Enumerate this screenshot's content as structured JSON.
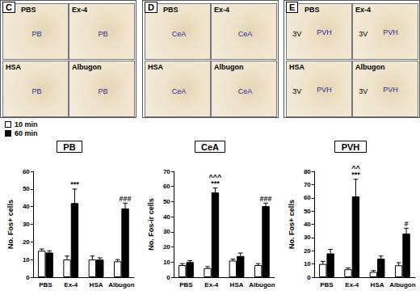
{
  "figure_panels": [
    {
      "letter": "C",
      "images": [
        {
          "label": "PBS",
          "regions": [
            {
              "text": "PB",
              "color": "#1f2fa0"
            }
          ]
        },
        {
          "label": "Ex-4",
          "regions": [
            {
              "text": "PB",
              "color": "#1f2fa0"
            }
          ]
        },
        {
          "label": "HSA",
          "regions": [
            {
              "text": "PB",
              "color": "#1f2fa0"
            }
          ]
        },
        {
          "label": "Albugon",
          "regions": [
            {
              "text": "PB",
              "color": "#1f2fa0"
            }
          ]
        }
      ]
    },
    {
      "letter": "D",
      "images": [
        {
          "label": "PBS",
          "regions": [
            {
              "text": "CeA",
              "color": "#1f2fa0"
            }
          ]
        },
        {
          "label": "Ex-4",
          "regions": [
            {
              "text": "CeA",
              "color": "#1f2fa0"
            }
          ]
        },
        {
          "label": "HSA",
          "regions": [
            {
              "text": "CeA",
              "color": "#1f2fa0"
            }
          ]
        },
        {
          "label": "Albugon",
          "regions": [
            {
              "text": "CeA",
              "color": "#1f2fa0"
            }
          ]
        }
      ]
    },
    {
      "letter": "E",
      "images": [
        {
          "label": "PBS",
          "regions": [
            {
              "text": "3V",
              "color": "#000000"
            },
            {
              "text": "PVH",
              "color": "#1f2fa0"
            }
          ]
        },
        {
          "label": "Ex-4",
          "regions": [
            {
              "text": "3V",
              "color": "#000000"
            },
            {
              "text": "PVH",
              "color": "#1f2fa0"
            }
          ]
        },
        {
          "label": "HSA",
          "regions": [
            {
              "text": "3V",
              "color": "#000000"
            },
            {
              "text": "PVH",
              "color": "#1f2fa0"
            }
          ]
        },
        {
          "label": "Albugon",
          "regions": [
            {
              "text": "3V",
              "color": "#000000"
            },
            {
              "text": "PVH",
              "color": "#1f2fa0"
            }
          ]
        }
      ]
    }
  ],
  "chart_data": [
    {
      "type": "bar",
      "title": "PB",
      "y_label": "No. Fos+ cells",
      "categories": [
        "PBS",
        "Ex-4",
        "HSA",
        "Albugon"
      ],
      "ylim": [
        0,
        60
      ],
      "yticks": [
        0,
        10,
        20,
        30,
        40,
        50,
        60
      ],
      "grid": false,
      "legend": "top-left",
      "series": [
        {
          "name": "10 min",
          "color": "#ffffff",
          "values": [
            15,
            10,
            10,
            9
          ],
          "errors": [
            1,
            2,
            2,
            1
          ]
        },
        {
          "name": "60 min",
          "color": "#000000",
          "values": [
            14,
            42,
            10,
            39
          ],
          "errors": [
            1,
            8,
            1,
            3
          ]
        }
      ],
      "annotations": [
        {
          "category": "Ex-4",
          "series": "60 min",
          "text": "***"
        },
        {
          "category": "Albugon",
          "series": "60 min",
          "text": "###"
        }
      ]
    },
    {
      "type": "bar",
      "title": "CeA",
      "y_label": "No. Fos-ir cells",
      "categories": [
        "PBS",
        "Ex-4",
        "HSA",
        "Albugon"
      ],
      "ylim": [
        0,
        70
      ],
      "yticks": [
        0,
        10,
        20,
        30,
        40,
        50,
        60,
        70
      ],
      "grid": false,
      "series": [
        {
          "name": "10 min",
          "color": "#ffffff",
          "values": [
            8,
            6,
            11,
            8
          ],
          "errors": [
            1,
            1,
            1,
            1
          ]
        },
        {
          "name": "60 min",
          "color": "#000000",
          "values": [
            10,
            56,
            14,
            47
          ],
          "errors": [
            1,
            3,
            2,
            2
          ]
        }
      ],
      "annotations": [
        {
          "category": "Ex-4",
          "series": "60 min",
          "text": "***"
        },
        {
          "category": "Ex-4",
          "series": "60 min",
          "text": "^^^"
        },
        {
          "category": "Albugon",
          "series": "60 min",
          "text": "###"
        }
      ]
    },
    {
      "type": "bar",
      "title": "PVH",
      "y_label": "No. Fos+ cells",
      "categories": [
        "PBS",
        "Ex-4",
        "HSA",
        "Albugon"
      ],
      "ylim": [
        0,
        80
      ],
      "yticks": [
        0,
        10,
        20,
        30,
        40,
        50,
        60,
        70,
        80
      ],
      "grid": false,
      "series": [
        {
          "name": "10 min",
          "color": "#ffffff",
          "values": [
            10,
            6,
            4,
            9
          ],
          "errors": [
            2,
            1,
            1,
            2
          ]
        },
        {
          "name": "60 min",
          "color": "#000000",
          "values": [
            18,
            61,
            14,
            33
          ],
          "errors": [
            3,
            13,
            2,
            4
          ]
        }
      ],
      "annotations": [
        {
          "category": "Ex-4",
          "series": "60 min",
          "text": "***"
        },
        {
          "category": "Ex-4",
          "series": "60 min",
          "text": "^^"
        },
        {
          "category": "Albugon",
          "series": "60 min",
          "text": "#"
        }
      ]
    }
  ]
}
